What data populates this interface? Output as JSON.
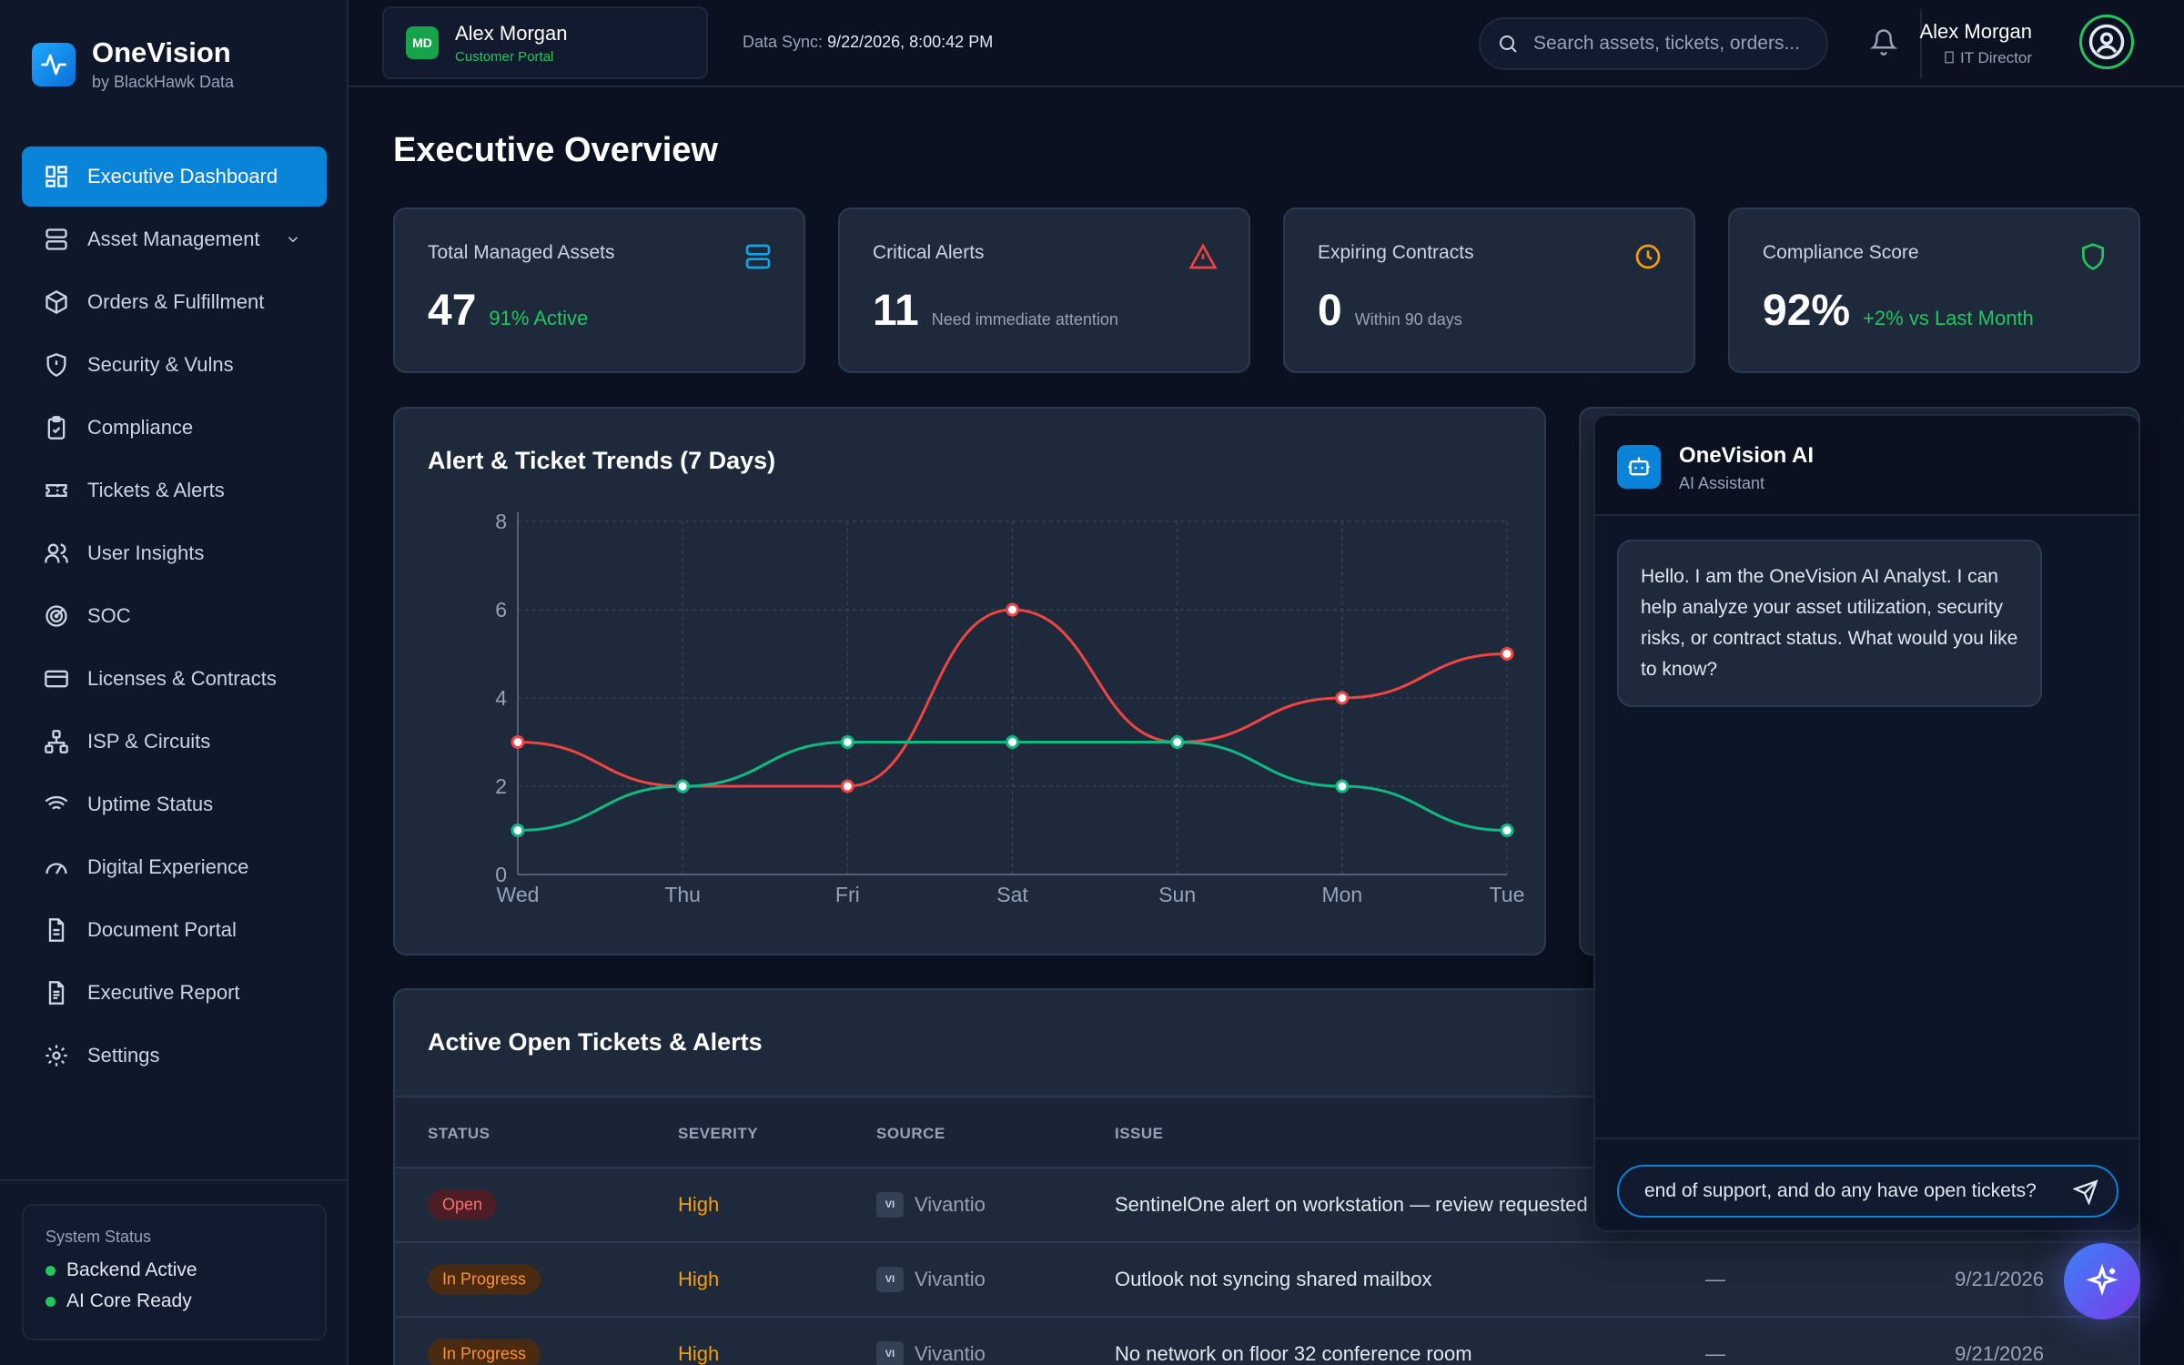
{
  "brand": {
    "name": "OneVision",
    "sub": "by BlackHawk Data"
  },
  "nav": [
    {
      "label": "Executive Dashboard",
      "icon": "dashboard-icon",
      "active": true
    },
    {
      "label": "Asset Management",
      "icon": "server-icon",
      "expandable": true
    },
    {
      "label": "Orders & Fulfillment",
      "icon": "package-icon"
    },
    {
      "label": "Security & Vulns",
      "icon": "shield-icon"
    },
    {
      "label": "Compliance",
      "icon": "clipboard-check-icon"
    },
    {
      "label": "Tickets & Alerts",
      "icon": "ticket-icon"
    },
    {
      "label": "User Insights",
      "icon": "users-icon"
    },
    {
      "label": "SOC",
      "icon": "radar-icon"
    },
    {
      "label": "Licenses & Contracts",
      "icon": "credit-card-icon"
    },
    {
      "label": "ISP & Circuits",
      "icon": "network-icon"
    },
    {
      "label": "Uptime Status",
      "icon": "wifi-icon"
    },
    {
      "label": "Digital Experience",
      "icon": "gauge-icon"
    },
    {
      "label": "Document Portal",
      "icon": "document-icon"
    },
    {
      "label": "Executive Report",
      "icon": "report-icon"
    },
    {
      "label": "Settings",
      "icon": "gear-icon"
    }
  ],
  "system_status": {
    "title": "System Status",
    "items": [
      "Backend Active",
      "AI Core Ready"
    ]
  },
  "header": {
    "portal_badge": "MD",
    "portal_name": "Alex Morgan",
    "portal_sub": "Customer Portal",
    "sync_label": "Data Sync:",
    "sync_value": "9/22/2026, 8:00:42 PM",
    "search_placeholder": "Search assets, tickets, orders...",
    "user_name": "Alex Morgan",
    "user_role": "IT Director"
  },
  "page_title": "Executive Overview",
  "kpis": [
    {
      "label": "Total Managed Assets",
      "value": "47",
      "note": "91% Active",
      "icon": "server-icon",
      "color": "#0ea5e9"
    },
    {
      "label": "Critical Alerts",
      "value": "11",
      "note": "Need immediate attention",
      "icon": "alert-triangle-icon",
      "color": "#ef4444"
    },
    {
      "label": "Expiring Contracts",
      "value": "0",
      "note": "Within 90 days",
      "icon": "clock-icon",
      "color": "#f59e0b"
    },
    {
      "label": "Compliance Score",
      "value": "92%",
      "note": "+2% vs Last Month",
      "icon": "shield-icon",
      "color": "#22c55e"
    }
  ],
  "chart_data": {
    "type": "line",
    "title": "Alert & Ticket Trends (7 Days)",
    "categories": [
      "Wed",
      "Thu",
      "Fri",
      "Sat",
      "Sun",
      "Mon",
      "Tue"
    ],
    "ylim": [
      0,
      8
    ],
    "yticks": [
      0,
      2,
      4,
      6,
      8
    ],
    "grid": true,
    "series": [
      {
        "color": "#ef4444",
        "values": [
          3,
          2,
          2,
          6,
          3,
          4,
          5
        ]
      },
      {
        "color": "#10b981",
        "values": [
          1,
          2,
          3,
          3,
          3,
          2,
          1
        ]
      }
    ]
  },
  "table": {
    "title": "Active Open Tickets & Alerts",
    "columns": [
      "STATUS",
      "SEVERITY",
      "SOURCE",
      "ISSUE"
    ],
    "rows": [
      {
        "status": "Open",
        "status_type": "open",
        "severity": "High",
        "source_badge": "VI",
        "source": "Vivantio",
        "issue": "SentinelOne alert on workstation — review requested",
        "assignee": "",
        "date": ""
      },
      {
        "status": "In Progress",
        "status_type": "prog",
        "severity": "High",
        "source_badge": "VI",
        "source": "Vivantio",
        "issue": "Outlook not syncing shared mailbox",
        "assignee": "—",
        "date": "9/21/2026"
      },
      {
        "status": "In Progress",
        "status_type": "prog",
        "severity": "High",
        "source_badge": "VI",
        "source": "Vivantio",
        "issue": "No network on floor 32 conference room",
        "assignee": "—",
        "date": "9/21/2026"
      }
    ]
  },
  "ai": {
    "name": "OneVision AI",
    "sub": "AI Assistant",
    "message": "Hello. I am the OneVision AI Analyst. I can help analyze your asset utilization, security risks, or contract status. What would you like to know?",
    "input_value": "end of support, and do any have open tickets?"
  }
}
